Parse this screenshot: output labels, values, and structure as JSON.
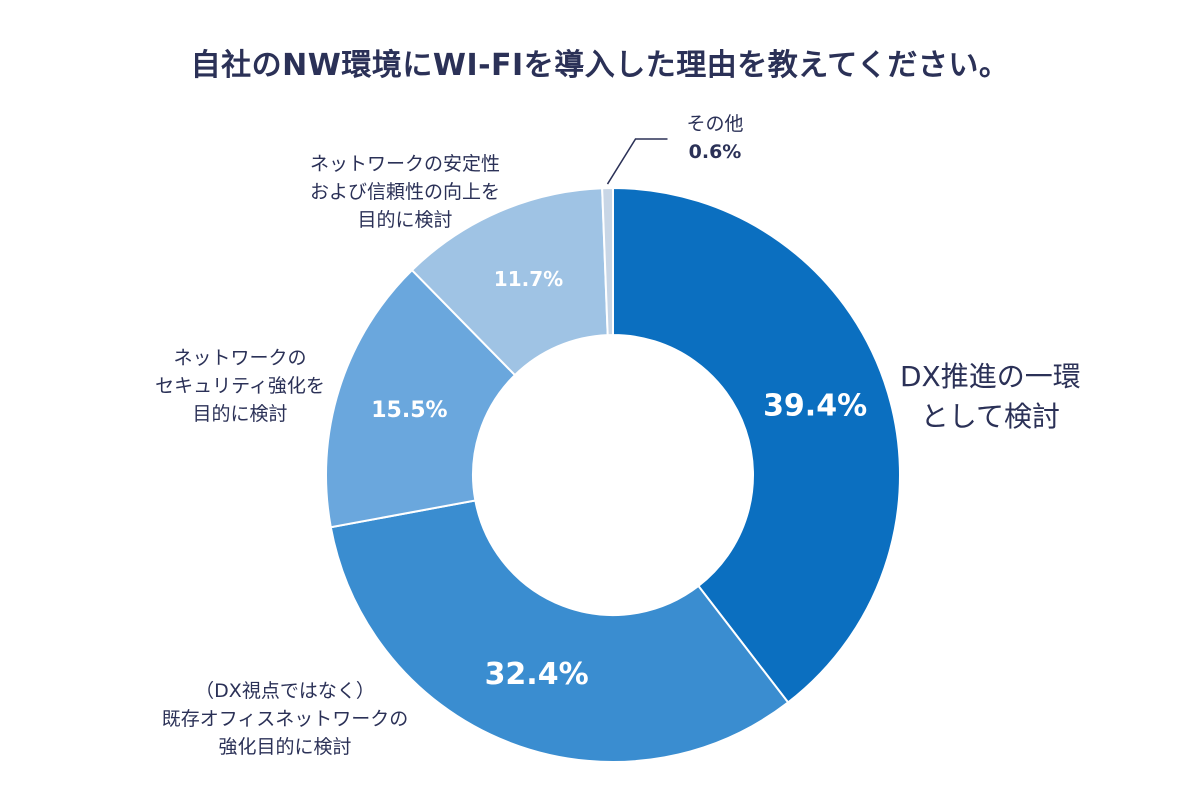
{
  "title": "自社のNW環境にWI-FIを導入した理由を教えてください。",
  "colors": {
    "title": "#2b3157",
    "slice1": "#0b6fc0",
    "slice2": "#3a8dd0",
    "slice3": "#6aa7dd",
    "slice4": "#9fc3e4",
    "slice5": "#c8d6e6",
    "leader": "#2b3157"
  },
  "chart_data": {
    "type": "pie",
    "donut": true,
    "start": "top",
    "direction": "clockwise",
    "slices": [
      {
        "label_lines": [
          "DX推進の一環",
          "として検討"
        ],
        "value": 39.4,
        "value_text": "39.4%",
        "color": "#0b6fc0"
      },
      {
        "label_lines": [
          "（DX視点ではなく）",
          "既存オフィスネットワークの",
          "強化目的に検討"
        ],
        "value": 32.4,
        "value_text": "32.4%",
        "color": "#3a8dd0"
      },
      {
        "label_lines": [
          "ネットワークの",
          "セキュリティ強化を",
          "目的に検討"
        ],
        "value": 15.5,
        "value_text": "15.5%",
        "color": "#6aa7dd"
      },
      {
        "label_lines": [
          "ネットワークの安定性",
          "および信頼性の向上を",
          "目的に検討"
        ],
        "value": 11.7,
        "value_text": "11.7%",
        "color": "#9fc3e4"
      },
      {
        "label_lines": [
          "その他"
        ],
        "value": 0.6,
        "value_text": "0.6%",
        "color": "#c8d6e6"
      }
    ]
  }
}
